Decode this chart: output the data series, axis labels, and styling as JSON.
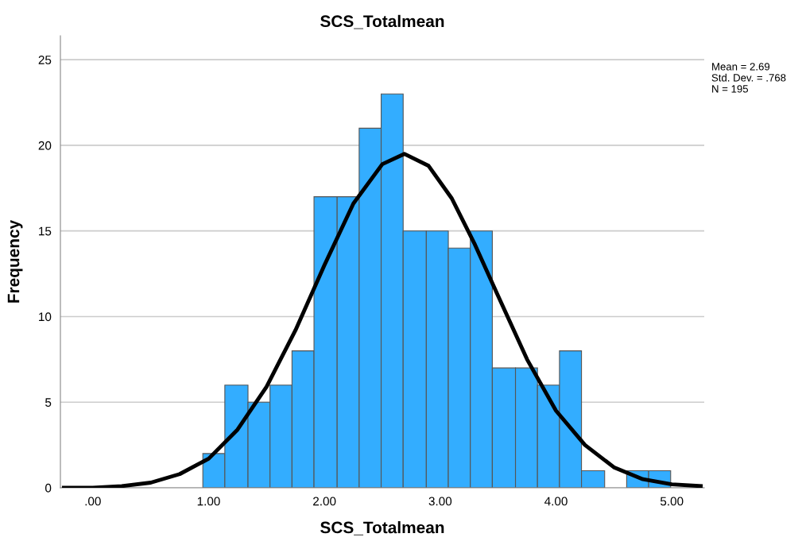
{
  "chart_data": {
    "type": "histogram",
    "title": "SCS_Totalmean",
    "xlabel": "SCS_Totalmean",
    "ylabel": "Frequency",
    "bins": [
      0.95,
      1.14,
      1.34,
      1.53,
      1.72,
      1.91,
      2.11,
      2.3,
      2.49,
      2.68,
      2.88,
      3.07,
      3.26,
      3.45,
      3.65,
      3.84,
      4.03,
      4.22,
      4.42,
      4.61,
      4.8,
      4.99
    ],
    "values": [
      2,
      6,
      5,
      6,
      8,
      17,
      17,
      21,
      23,
      15,
      15,
      14,
      15,
      7,
      7,
      6,
      8,
      1,
      0,
      1,
      1
    ],
    "color": "#33adff",
    "series": [
      {
        "type": "line",
        "color": "#000000",
        "x": [
          -0.25,
          0.0,
          0.25,
          0.5,
          0.75,
          1.0,
          1.25,
          1.5,
          1.75,
          2.0,
          2.25,
          2.5,
          2.69,
          2.9,
          3.1,
          3.3,
          3.5,
          3.75,
          4.0,
          4.25,
          4.5,
          4.75,
          5.0,
          5.25
        ],
        "values": [
          0.0,
          0.0,
          0.1,
          0.3,
          0.8,
          1.7,
          3.4,
          5.9,
          9.2,
          13.0,
          16.6,
          18.9,
          19.5,
          18.8,
          16.9,
          14.2,
          11.2,
          7.5,
          4.5,
          2.5,
          1.2,
          0.5,
          0.2,
          0.1
        ]
      }
    ],
    "xlim": [
      -0.28,
      5.28
    ],
    "xticks": [
      {
        "value": 0,
        "label": ".00"
      },
      {
        "value": 1,
        "label": "1.00"
      },
      {
        "value": 2,
        "label": "2.00"
      },
      {
        "value": 3,
        "label": "3.00"
      },
      {
        "value": 4,
        "label": "4.00"
      },
      {
        "value": 5,
        "label": "5.00"
      }
    ],
    "ylim": [
      0,
      26.4
    ],
    "yticks": [
      0,
      5,
      10,
      15,
      20,
      25
    ],
    "grid": "y",
    "annotations": [
      "Mean = 2.69",
      "Std. Dev. = .768",
      "N = 195"
    ]
  }
}
